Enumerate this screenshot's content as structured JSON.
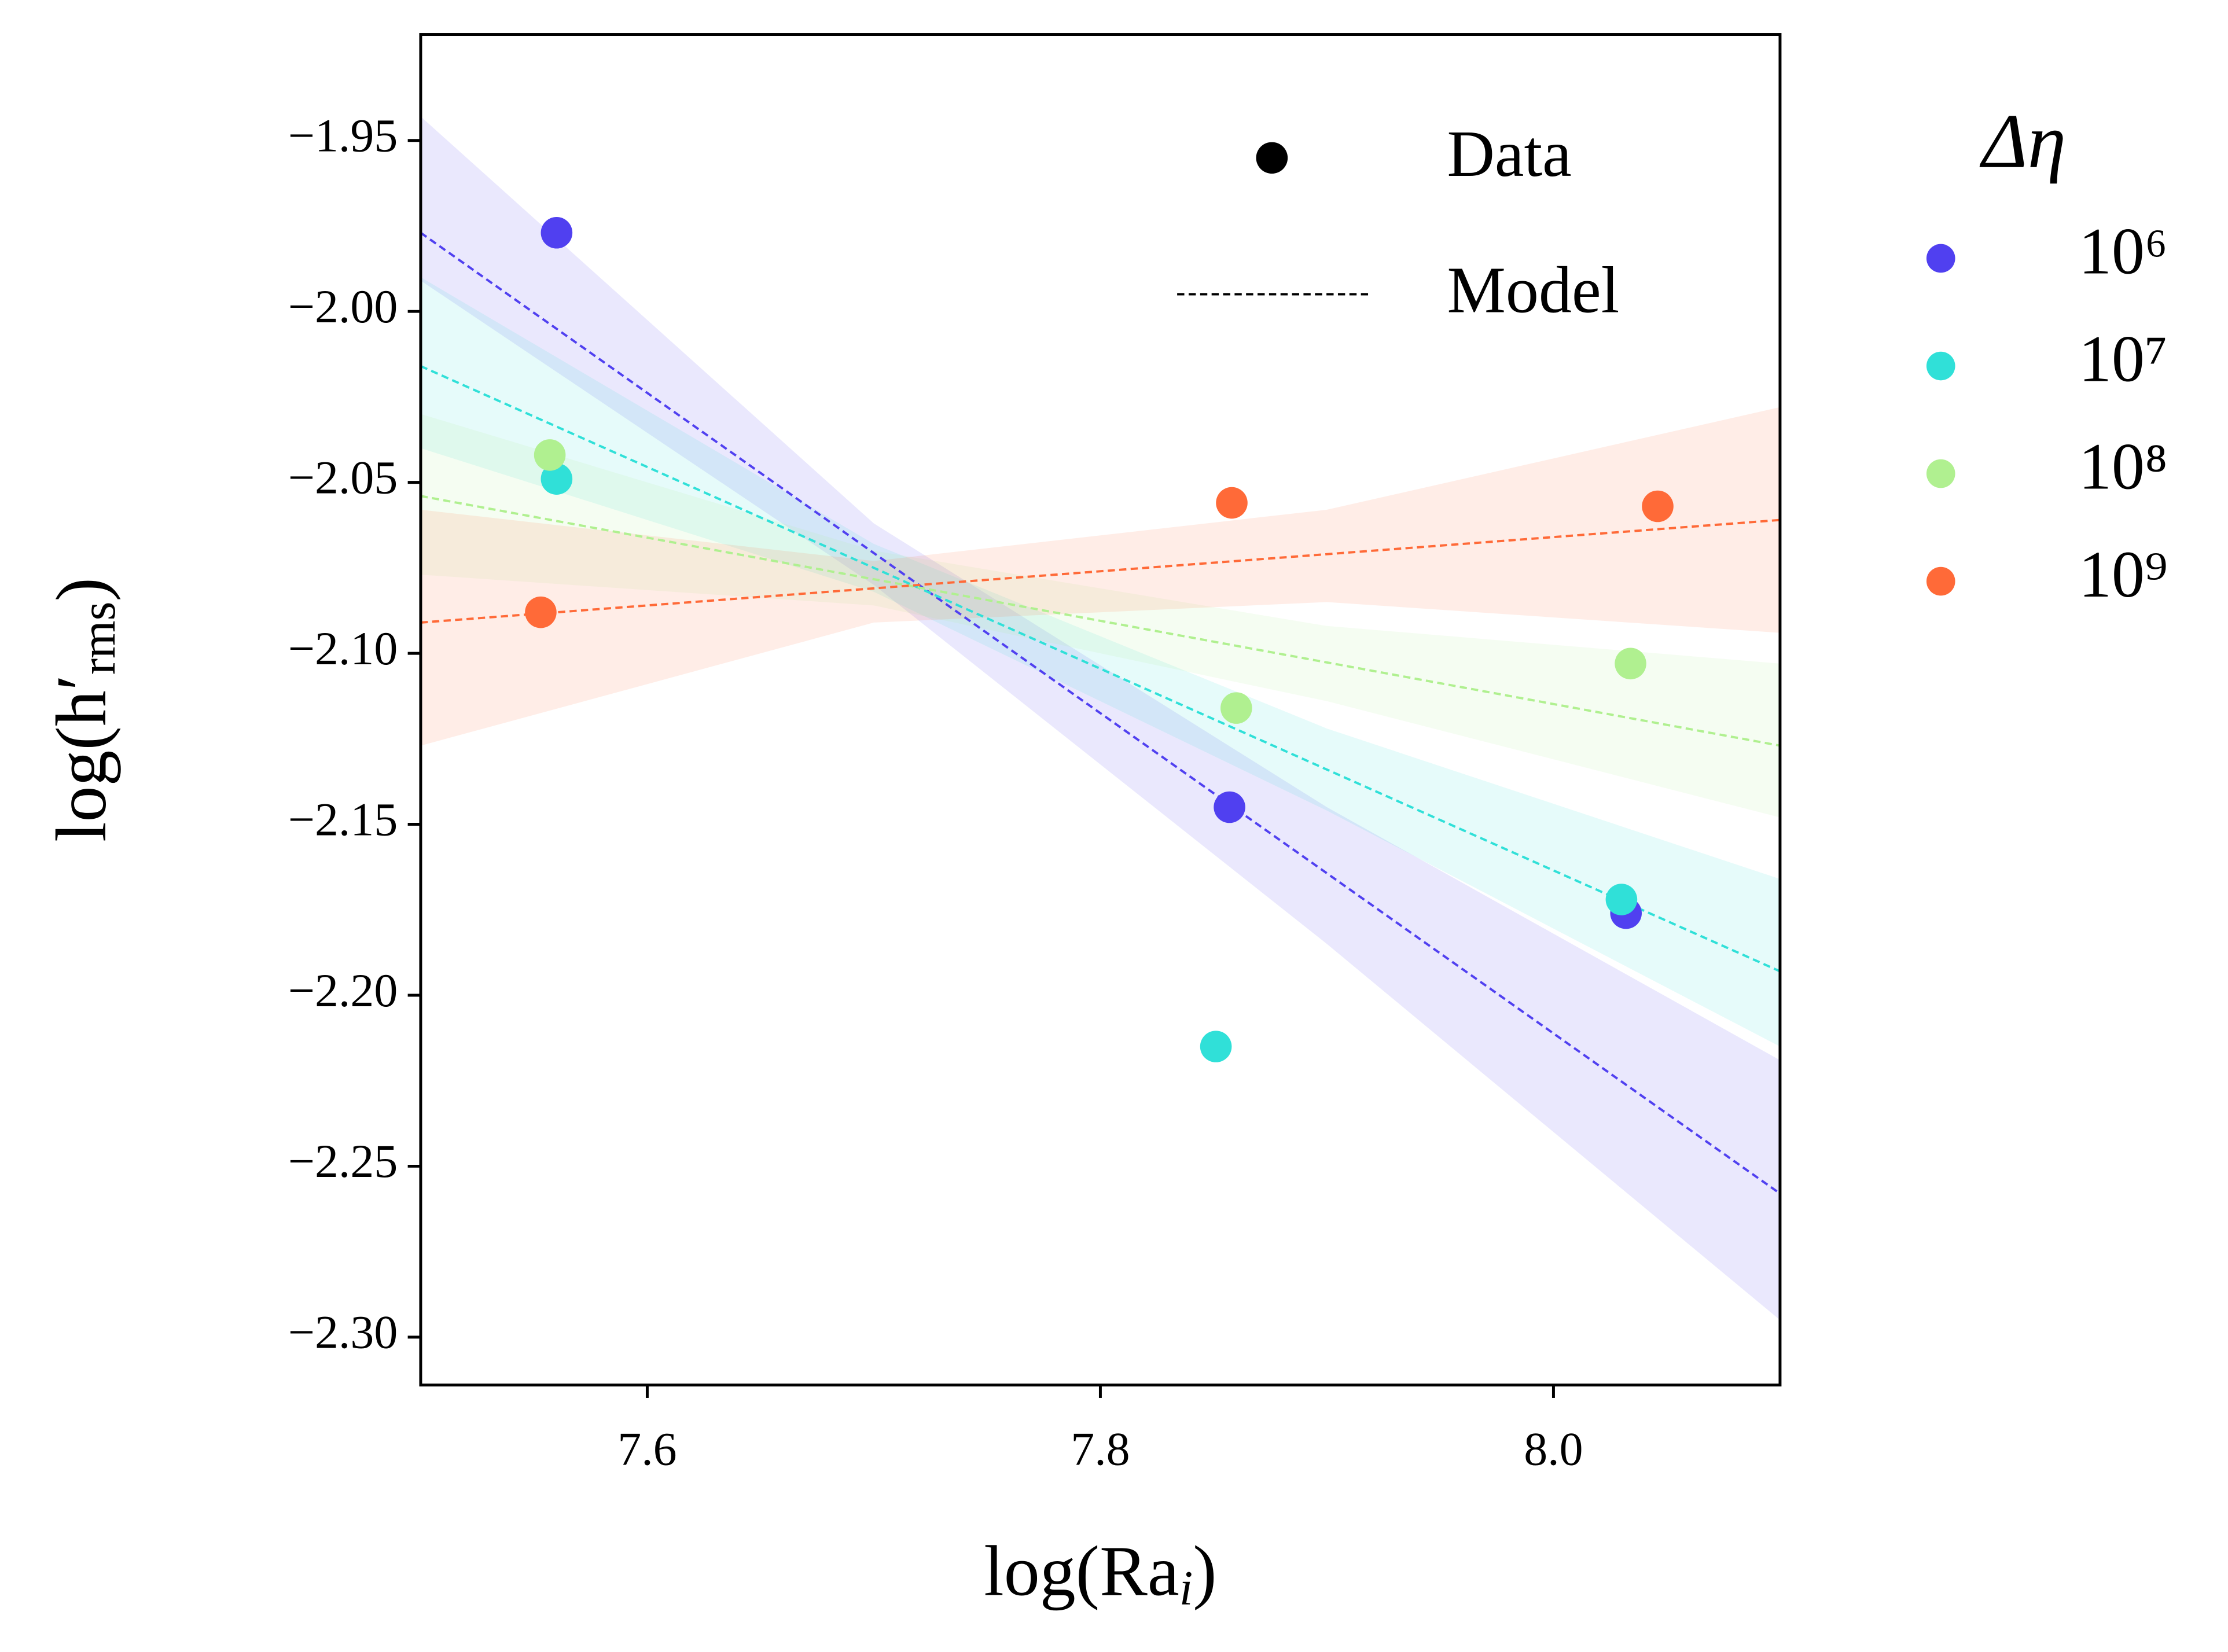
{
  "chart_data": {
    "type": "scatter",
    "xlabel": [
      "log(Ra",
      "i",
      ")"
    ],
    "ylabel": [
      "log(h′",
      "rms",
      ")"
    ],
    "xlim": [
      7.5,
      8.1
    ],
    "ylim": [
      -2.314,
      -1.919
    ],
    "xticks": [
      7.6,
      7.8,
      {
        "value": 8.0,
        "label": "8.0"
      }
    ],
    "yticks": [
      {
        "value": -1.95,
        "label": "−1.95"
      },
      {
        "value": -2.0,
        "label": "−2.00"
      },
      {
        "value": -2.05,
        "label": "−2.05"
      },
      {
        "value": -2.1,
        "label": "−2.10"
      },
      {
        "value": -2.15,
        "label": "−2.15"
      },
      {
        "value": -2.2,
        "label": "−2.20"
      },
      {
        "value": -2.25,
        "label": "−2.25"
      },
      {
        "value": -2.3,
        "label": "−2.30"
      }
    ],
    "legend_title": "Δη",
    "style_legend": [
      "Data",
      "Model"
    ],
    "series": [
      {
        "name": "10⁶",
        "color": "#5040f0",
        "x": [
          7.56,
          7.857,
          8.032
        ],
        "values": [
          -1.977,
          -2.145,
          -2.176
        ],
        "model": {
          "x": [
            7.5,
            8.1
          ],
          "values": [
            -1.977,
            -2.258
          ]
        },
        "band": {
          "x": [
            7.5,
            7.7,
            7.9,
            8.1
          ],
          "upper": [
            -1.943,
            -2.062,
            -2.145,
            -2.219
          ],
          "lower": [
            -1.991,
            -2.08,
            -2.185,
            -2.295
          ]
        }
      },
      {
        "name": "10⁷",
        "color": "#30e0d8",
        "x": [
          7.56,
          7.851,
          8.03
        ],
        "values": [
          -2.049,
          -2.215,
          -2.172
        ],
        "model": {
          "x": [
            7.5,
            8.1
          ],
          "values": [
            -2.016,
            -2.193
          ]
        },
        "band": {
          "x": [
            7.5,
            7.7,
            7.9,
            8.1
          ],
          "upper": [
            -1.99,
            -2.068,
            -2.122,
            -2.166
          ],
          "lower": [
            -2.04,
            -2.082,
            -2.146,
            -2.215
          ]
        }
      },
      {
        "name": "10⁸",
        "color": "#b0f090",
        "x": [
          7.557,
          7.86,
          8.034
        ],
        "values": [
          -2.042,
          -2.116,
          -2.103
        ],
        "model": {
          "x": [
            7.5,
            8.1
          ],
          "values": [
            -2.054,
            -2.127
          ]
        },
        "band": {
          "x": [
            7.5,
            7.7,
            7.9,
            8.1
          ],
          "upper": [
            -2.03,
            -2.07,
            -2.092,
            -2.103
          ],
          "lower": [
            -2.077,
            -2.086,
            -2.114,
            -2.148
          ]
        }
      },
      {
        "name": "10⁹",
        "color": "#ff6a38",
        "x": [
          7.553,
          7.858,
          8.046
        ],
        "values": [
          -2.088,
          -2.056,
          -2.057
        ],
        "model": {
          "x": [
            7.5,
            8.1
          ],
          "values": [
            -2.091,
            -2.061
          ]
        },
        "band": {
          "x": [
            7.5,
            7.7,
            7.9,
            8.1
          ],
          "upper": [
            -2.058,
            -2.073,
            -2.058,
            -2.028
          ],
          "lower": [
            -2.127,
            -2.091,
            -2.085,
            -2.094
          ]
        }
      }
    ]
  }
}
